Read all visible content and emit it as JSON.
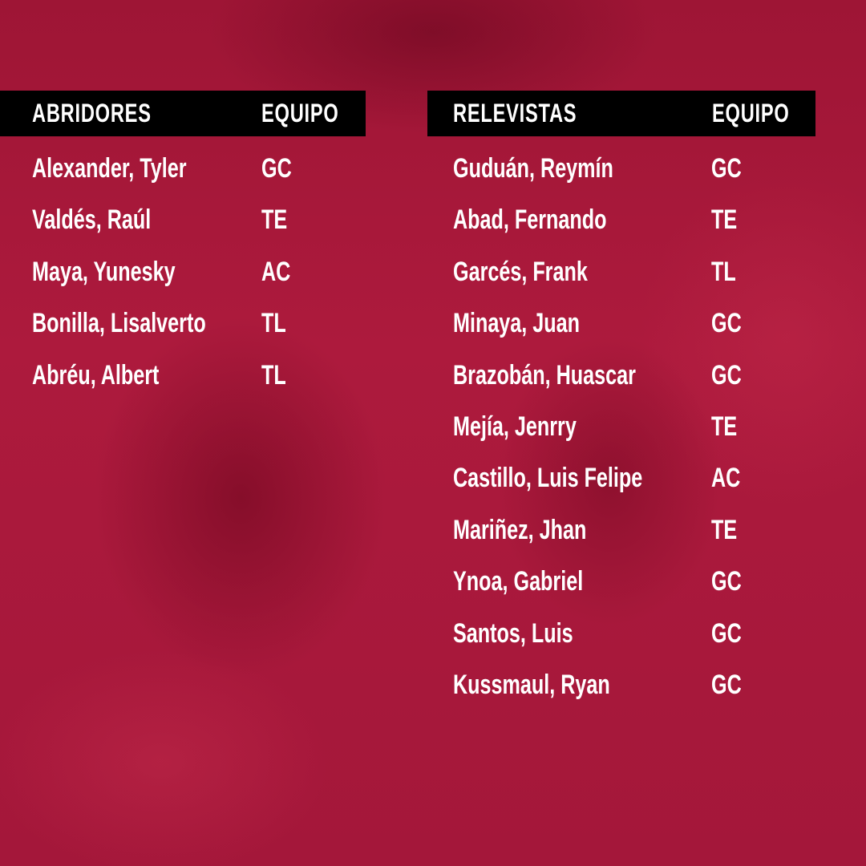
{
  "colors": {
    "background": "#a8183b",
    "header_bar": "#000000",
    "text": "#ffffff"
  },
  "starters": {
    "header": "ABRIDORES",
    "team_header": "EQUIPO",
    "rows": [
      {
        "name": "Alexander, Tyler",
        "team": "GC"
      },
      {
        "name": "Valdés, Raúl",
        "team": "TE"
      },
      {
        "name": "Maya, Yunesky",
        "team": "AC"
      },
      {
        "name": "Bonilla, Lisalverto",
        "team": "TL"
      },
      {
        "name": "Abréu, Albert",
        "team": "TL"
      }
    ]
  },
  "relievers": {
    "header": "RELEVISTAS",
    "team_header": "EQUIPO",
    "rows": [
      {
        "name": "Guduán, Reymín",
        "team": "GC"
      },
      {
        "name": "Abad, Fernando",
        "team": "TE"
      },
      {
        "name": "Garcés, Frank",
        "team": "TL"
      },
      {
        "name": "Minaya, Juan",
        "team": "GC"
      },
      {
        "name": "Brazobán, Huascar",
        "team": "GC"
      },
      {
        "name": "Mejía, Jenrry",
        "team": "TE"
      },
      {
        "name": "Castillo, Luis Felipe",
        "team": "AC"
      },
      {
        "name": "Mariñez, Jhan",
        "team": "TE"
      },
      {
        "name": "Ynoa, Gabriel",
        "team": "GC"
      },
      {
        "name": "Santos, Luis",
        "team": "GC"
      },
      {
        "name": "Kussmaul, Ryan",
        "team": "GC"
      }
    ]
  }
}
